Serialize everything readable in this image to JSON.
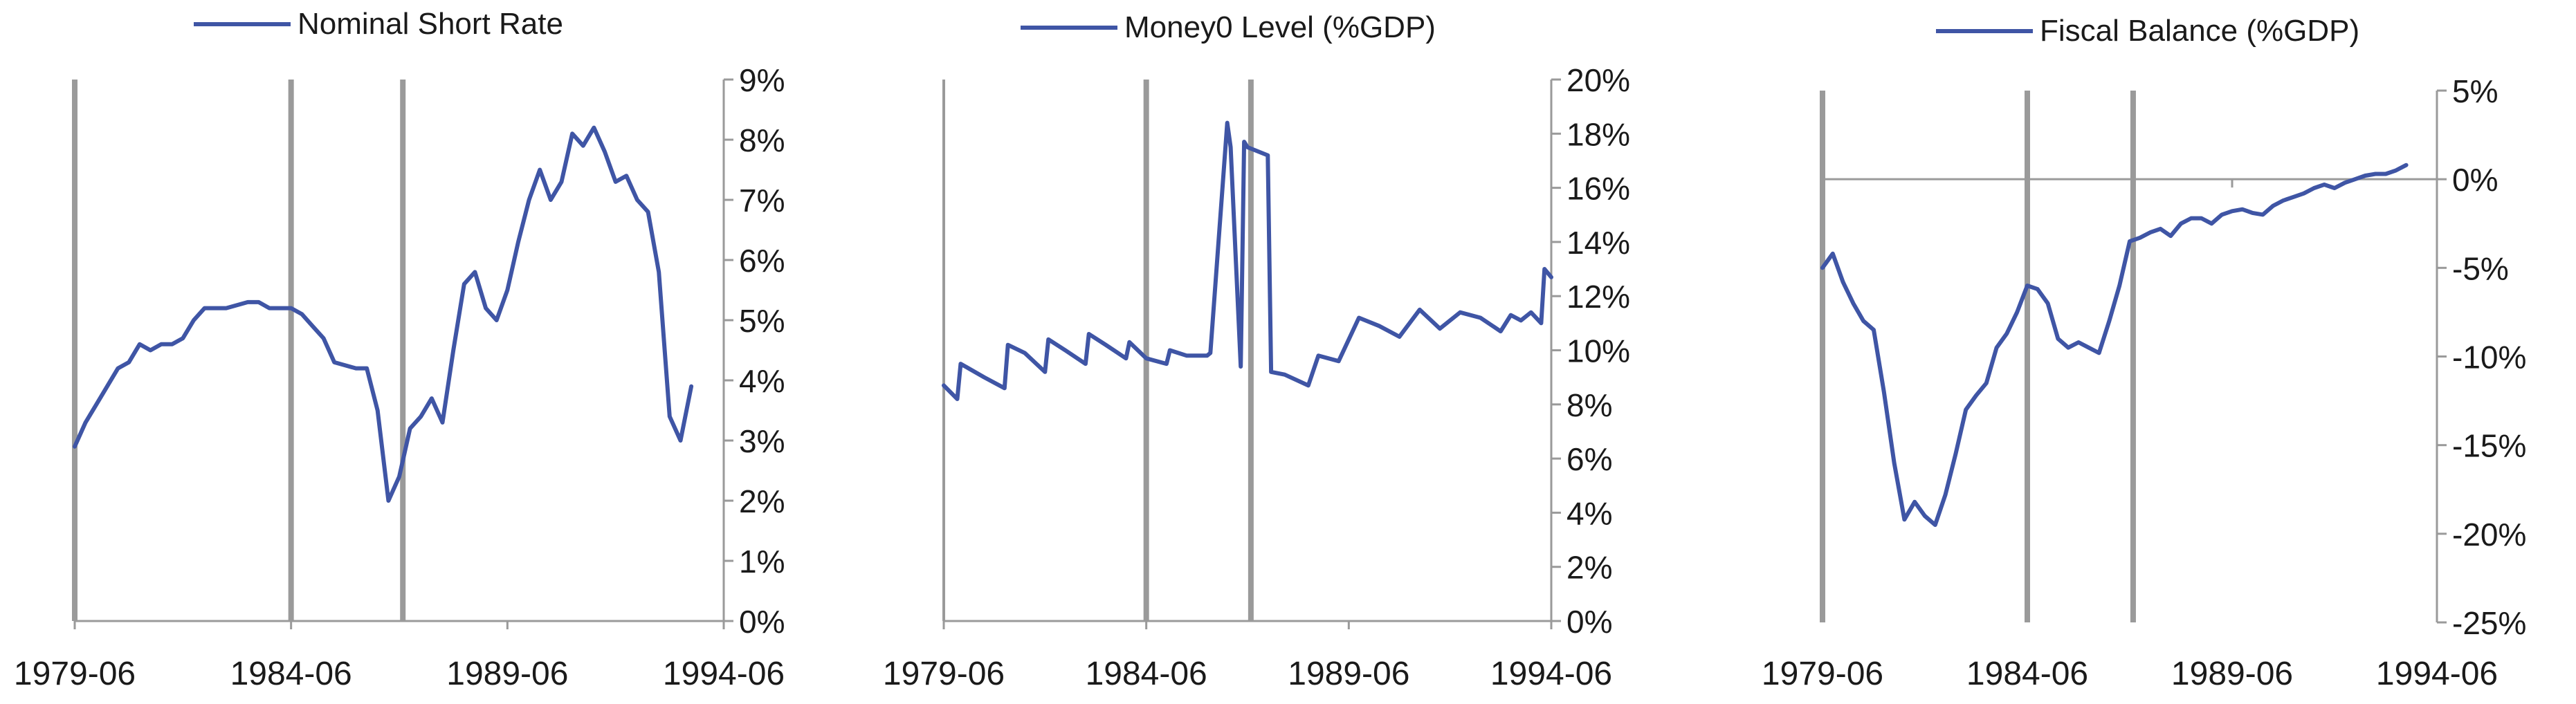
{
  "colors": {
    "series": "#3f55a5",
    "axis": "#9a9a9a",
    "marker": "#9a9a9a",
    "text": "#1a1a1a"
  },
  "chart_data": [
    {
      "type": "line",
      "title": "",
      "legend": {
        "label": "Nominal Short Rate",
        "placement": "top-center"
      },
      "x_axis": {
        "start": "1979-06",
        "end": "1994-06",
        "ticks": [
          "1979-06",
          "1984-06",
          "1989-06",
          "1994-06"
        ]
      },
      "y_axis": {
        "side": "right",
        "min": 0,
        "max": 9,
        "step": 1,
        "suffix": "%",
        "ticks": [
          "0%",
          "1%",
          "2%",
          "3%",
          "4%",
          "5%",
          "6%",
          "7%",
          "8%",
          "9%"
        ]
      },
      "vertical_markers": [
        "1979-06",
        "1984-06",
        "1987-01"
      ],
      "series": [
        {
          "name": "Nominal Short Rate",
          "x": [
            "1979-06",
            "1979-09",
            "1979-12",
            "1980-03",
            "1980-06",
            "1980-09",
            "1980-12",
            "1981-03",
            "1981-06",
            "1981-09",
            "1981-12",
            "1982-03",
            "1982-06",
            "1982-09",
            "1982-12",
            "1983-03",
            "1983-06",
            "1983-09",
            "1983-12",
            "1984-03",
            "1984-06",
            "1984-09",
            "1984-12",
            "1985-03",
            "1985-06",
            "1985-09",
            "1985-12",
            "1986-03",
            "1986-06",
            "1986-09",
            "1986-12",
            "1987-03",
            "1987-06",
            "1987-09",
            "1987-12",
            "1988-03",
            "1988-06",
            "1988-09",
            "1988-12",
            "1989-03",
            "1989-06",
            "1989-09",
            "1989-12",
            "1990-03",
            "1990-06",
            "1990-09",
            "1990-12",
            "1991-03",
            "1991-06",
            "1991-09",
            "1991-12",
            "1992-03",
            "1992-06",
            "1992-09",
            "1992-12",
            "1993-03",
            "1993-06",
            "1993-09",
            "1993-12",
            "1994-03",
            "1994-06"
          ],
          "y": [
            2.9,
            3.3,
            3.6,
            3.9,
            4.2,
            4.3,
            4.6,
            4.5,
            4.6,
            4.6,
            4.7,
            5.0,
            5.2,
            5.2,
            5.2,
            5.25,
            5.3,
            5.3,
            5.2,
            5.2,
            5.2,
            5.1,
            4.9,
            4.7,
            4.3,
            4.25,
            4.2,
            4.2,
            3.5,
            2.0,
            2.4,
            3.2,
            3.4,
            3.7,
            3.3,
            4.5,
            5.6,
            5.8,
            5.2,
            5.0,
            5.5,
            6.3,
            7.0,
            7.5,
            7.0,
            7.3,
            8.1,
            7.9,
            8.2,
            7.8,
            7.3,
            7.4,
            7.0,
            6.8,
            5.8,
            3.4,
            3.0,
            3.9,
            null,
            null,
            null
          ]
        }
      ]
    },
    {
      "type": "line",
      "title": "",
      "legend": {
        "label": "Money0 Level (%GDP)",
        "placement": "top-center"
      },
      "x_axis": {
        "start": "1979-06",
        "end": "1994-06",
        "ticks": [
          "1979-06",
          "1984-06",
          "1989-06",
          "1994-06"
        ]
      },
      "y_axis": {
        "side": "right",
        "min": 0,
        "max": 20,
        "step": 2,
        "suffix": "%",
        "ticks": [
          "0%",
          "2%",
          "4%",
          "6%",
          "8%",
          "10%",
          "12%",
          "14%",
          "16%",
          "18%",
          "20%"
        ]
      },
      "vertical_markers": [
        "1984-06",
        "1987-01"
      ],
      "series": [
        {
          "name": "Money0 Level (%GDP)",
          "x": [
            "1979-06",
            "1979-10",
            "1979-11",
            "1980-06",
            "1980-12",
            "1981-01",
            "1981-06",
            "1981-12",
            "1982-01",
            "1982-06",
            "1982-12",
            "1983-01",
            "1983-06",
            "1983-12",
            "1984-01",
            "1984-06",
            "1984-12",
            "1985-01",
            "1985-06",
            "1985-12",
            "1986-01",
            "1986-06",
            "1986-07",
            "1986-10",
            "1986-11",
            "1986-12",
            "1987-06",
            "1987-07",
            "1987-11",
            "1988-06",
            "1988-09",
            "1989-03",
            "1989-09",
            "1990-03",
            "1990-09",
            "1991-03",
            "1991-09",
            "1992-03",
            "1992-09",
            "1993-03",
            "1993-06",
            "1993-09",
            "1993-12",
            "1994-03",
            "1994-04",
            "1994-06"
          ],
          "y": [
            8.7,
            8.2,
            9.5,
            9.0,
            8.6,
            10.2,
            9.9,
            9.2,
            10.4,
            10.0,
            9.5,
            10.6,
            10.2,
            9.7,
            10.3,
            9.7,
            9.5,
            10.0,
            9.8,
            9.8,
            9.9,
            18.4,
            17.5,
            9.4,
            17.7,
            17.5,
            17.2,
            9.2,
            9.1,
            8.7,
            9.8,
            9.6,
            11.2,
            10.9,
            10.5,
            11.5,
            10.8,
            11.4,
            11.2,
            10.7,
            11.3,
            11.1,
            11.4,
            11.0,
            13.0,
            12.7
          ]
        }
      ]
    },
    {
      "type": "line",
      "title": "",
      "legend": {
        "label": "Fiscal Balance (%GDP)",
        "placement": "top-center"
      },
      "x_axis": {
        "start": "1979-06",
        "end": "1994-06",
        "ticks": [
          "1979-06",
          "1984-06",
          "1989-06",
          "1994-06"
        ]
      },
      "y_axis": {
        "side": "right",
        "min": -25,
        "max": 5,
        "step": 5,
        "suffix": "%",
        "zero_line": true,
        "ticks": [
          "-25%",
          "-20%",
          "-15%",
          "-10%",
          "-5%",
          "0%",
          "5%"
        ]
      },
      "vertical_markers": [
        "1979-06",
        "1984-06",
        "1987-01"
      ],
      "series": [
        {
          "name": "Fiscal Balance (%GDP)",
          "x": [
            "1979-06",
            "1979-09",
            "1979-12",
            "1980-03",
            "1980-06",
            "1980-09",
            "1980-12",
            "1981-03",
            "1981-06",
            "1981-09",
            "1981-12",
            "1982-03",
            "1982-06",
            "1982-09",
            "1982-12",
            "1983-03",
            "1983-06",
            "1983-09",
            "1983-12",
            "1984-03",
            "1984-06",
            "1984-09",
            "1984-12",
            "1985-03",
            "1985-06",
            "1985-09",
            "1985-12",
            "1986-03",
            "1986-06",
            "1986-09",
            "1986-12",
            "1987-03",
            "1987-06",
            "1987-09",
            "1987-12",
            "1988-03",
            "1988-06",
            "1988-09",
            "1988-12",
            "1989-03",
            "1989-06",
            "1989-09",
            "1989-12",
            "1990-03",
            "1990-06",
            "1990-09",
            "1990-12",
            "1991-03",
            "1991-06",
            "1991-09",
            "1991-12",
            "1992-03",
            "1992-06",
            "1992-09",
            "1992-12",
            "1993-03",
            "1993-06",
            "1993-09",
            "1993-12",
            "1994-03",
            "1994-06"
          ],
          "y": [
            -5.0,
            -4.2,
            -5.8,
            -7.0,
            -8.0,
            -8.5,
            -12.0,
            -16.0,
            -19.2,
            -18.2,
            -19.0,
            -19.5,
            -17.8,
            -15.5,
            -13.0,
            -12.2,
            -11.5,
            -9.5,
            -8.7,
            -7.5,
            -6.0,
            -6.2,
            -7.0,
            -9.0,
            -9.5,
            -9.2,
            -9.5,
            -9.8,
            -8.0,
            -6.0,
            -3.5,
            -3.3,
            -3.0,
            -2.8,
            -3.2,
            -2.5,
            -2.2,
            -2.2,
            -2.5,
            -2.0,
            -1.8,
            -1.7,
            -1.9,
            -2.0,
            -1.5,
            -1.2,
            -1.0,
            -0.8,
            -0.5,
            -0.3,
            -0.5,
            -0.2,
            0.0,
            0.2,
            0.3,
            0.3,
            0.5,
            0.8,
            null,
            null,
            null
          ]
        }
      ]
    }
  ]
}
